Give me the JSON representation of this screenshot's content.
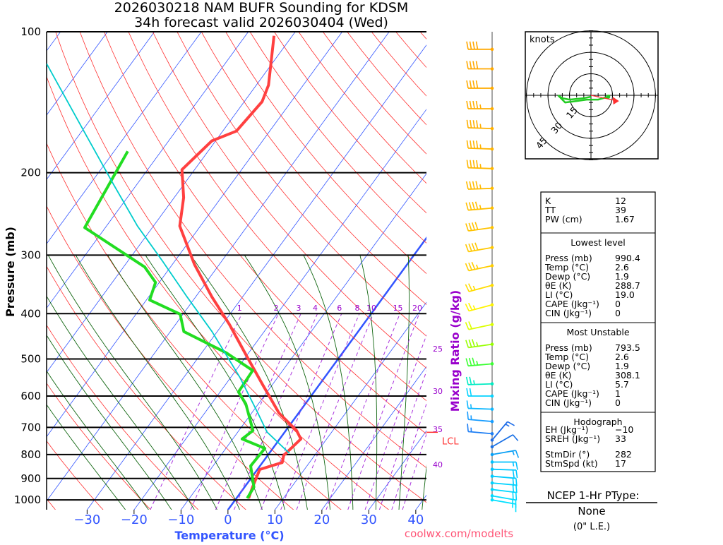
{
  "header": {
    "title_line1": "2026030218 NAM BUFR Sounding for KDSM",
    "title_line2": "34h forecast valid 2026030404 (Wed)"
  },
  "axes": {
    "ylabel": "Pressure (mb)",
    "xlabel": "Temperature (°C)",
    "mixing_ratio_label": "Mixing Ratio (g/kg)",
    "pressure_ticks": [
      100,
      200,
      300,
      400,
      500,
      600,
      700,
      800,
      900,
      1000
    ],
    "temperature_ticks": [
      -30,
      -20,
      -10,
      0,
      10,
      20,
      30,
      40
    ],
    "temperature_tick_labels": [
      "−30",
      "−20",
      "−10",
      "0",
      "10",
      "20",
      "30",
      "40"
    ],
    "mixing_ratio_top_labels": [
      1,
      2,
      3,
      4,
      6,
      8,
      10,
      15,
      20
    ],
    "mixing_ratio_side_labels": [
      25,
      30,
      35,
      40
    ],
    "lcl_label": "LCL",
    "footer": "coolwx.com/modelts"
  },
  "chart_data": {
    "type": "line",
    "title": "2026030218 NAM BUFR Sounding for KDSM — 34h forecast valid 2026030404 (Wed)",
    "xlabel": "Temperature (°C)",
    "ylabel": "Pressure (mb)",
    "xlim_at_bottom": [
      -40,
      45
    ],
    "ylim": [
      1050,
      100
    ],
    "lcl_pressure": 717,
    "series": [
      {
        "name": "temperature",
        "color": "#ff4040",
        "points": [
          [
            992,
            2.6
          ],
          [
            939,
            1.7
          ],
          [
            861,
            0.5
          ],
          [
            832,
            4.2
          ],
          [
            803,
            3.4
          ],
          [
            741,
            4.5
          ],
          [
            711,
            2.3
          ],
          [
            652,
            -4.2
          ],
          [
            567,
            -12.1
          ],
          [
            494,
            -19.8
          ],
          [
            422,
            -28.5
          ],
          [
            368,
            -36.6
          ],
          [
            314,
            -45.3
          ],
          [
            260,
            -54.4
          ],
          [
            226,
            -58.0
          ],
          [
            197,
            -62.7
          ],
          [
            171,
            -60.8
          ],
          [
            163,
            -57.1
          ],
          [
            141,
            -56.2
          ],
          [
            130,
            -57.4
          ],
          [
            102,
            -63.9
          ]
        ]
      },
      {
        "name": "dewpoint",
        "color": "#22dd22",
        "points": [
          [
            992,
            2.3
          ],
          [
            939,
            2.0
          ],
          [
            846,
            -2.0
          ],
          [
            776,
            -1.7
          ],
          [
            741,
            -8.0
          ],
          [
            711,
            -7.0
          ],
          [
            623,
            -12.7
          ],
          [
            588,
            -16.1
          ],
          [
            529,
            -16.4
          ],
          [
            485,
            -24.8
          ],
          [
            437,
            -37.1
          ],
          [
            401,
            -40.6
          ],
          [
            374,
            -49.3
          ],
          [
            343,
            -50.8
          ],
          [
            318,
            -55.5
          ],
          [
            262,
            -74.4
          ],
          [
            180,
            -77.1
          ]
        ]
      },
      {
        "name": "parcel",
        "color": "#00cccc",
        "points": [
          [
            795,
            4.3
          ],
          [
            716,
            -3.8
          ],
          [
            652,
            -8.7
          ],
          [
            548,
            -18.0
          ],
          [
            437,
            -31.1
          ],
          [
            368,
            -41.9
          ],
          [
            309,
            -52.6
          ],
          [
            260,
            -63.4
          ],
          [
            211,
            -75.2
          ],
          [
            165,
            -88.9
          ],
          [
            117,
            -108
          ]
        ]
      }
    ],
    "winds": [
      [
        109,
        270,
        40
      ],
      [
        120,
        270,
        40
      ],
      [
        132,
        270,
        40
      ],
      [
        146,
        270,
        45
      ],
      [
        161,
        272,
        45
      ],
      [
        178,
        272,
        45
      ],
      [
        196,
        272,
        45
      ],
      [
        216,
        268,
        45
      ],
      [
        238,
        265,
        45
      ],
      [
        262,
        262,
        40
      ],
      [
        289,
        260,
        40
      ],
      [
        316,
        258,
        35
      ],
      [
        348,
        255,
        25
      ],
      [
        383,
        255,
        25
      ],
      [
        422,
        258,
        20
      ],
      [
        465,
        262,
        35
      ],
      [
        512,
        265,
        35
      ],
      [
        565,
        268,
        25
      ],
      [
        600,
        270,
        20
      ],
      [
        640,
        272,
        15
      ],
      [
        680,
        275,
        15
      ],
      [
        722,
        275,
        15
      ],
      [
        745,
        40,
        15
      ],
      [
        770,
        60,
        10
      ],
      [
        800,
        80,
        15
      ],
      [
        830,
        90,
        15
      ],
      [
        860,
        92,
        18
      ],
      [
        890,
        95,
        18
      ],
      [
        920,
        95,
        18
      ],
      [
        950,
        97,
        18
      ],
      [
        980,
        100,
        15
      ],
      [
        1000,
        100,
        15
      ]
    ],
    "wind_color_stops": [
      [
        100,
        "#ffa500"
      ],
      [
        330,
        "#ffd000"
      ],
      [
        400,
        "#ffff00"
      ],
      [
        480,
        "#80ff00"
      ],
      [
        540,
        "#00ff60"
      ],
      [
        580,
        "#00e0ff"
      ],
      [
        700,
        "#1e90ff"
      ],
      [
        760,
        "#1e60e0"
      ],
      [
        820,
        "#00c0ff"
      ],
      [
        1000,
        "#00e0ff"
      ]
    ]
  },
  "hodograph": {
    "units_label": "knots",
    "rings": [
      15,
      30,
      45
    ],
    "trace_uv": [
      [
        12,
        -1
      ],
      [
        5,
        -3
      ],
      [
        -3,
        -3
      ],
      [
        -10,
        -4
      ],
      [
        -18,
        -5
      ],
      [
        -23,
        0
      ],
      [
        -20,
        -2
      ],
      [
        -15,
        -3
      ],
      [
        -5,
        -2
      ],
      [
        0,
        -1
      ]
    ],
    "storm_motion_uv": [
      16.6,
      -3.5
    ]
  },
  "stats": {
    "indices": [
      {
        "label": "K",
        "value": "12"
      },
      {
        "label": "TT",
        "value": "39"
      },
      {
        "label": "PW (cm)",
        "value": "1.67"
      }
    ],
    "lowest": {
      "heading": "Lowest level",
      "rows": [
        {
          "label": "Press (mb)",
          "value": "990.4"
        },
        {
          "label": "Temp (°C)",
          "value": "2.6"
        },
        {
          "label": "Dewp (°C)",
          "value": "1.9"
        },
        {
          "label": "θE (K)",
          "value": "288.7"
        },
        {
          "label": "LI (°C)",
          "value": "19.0"
        },
        {
          "label": "CAPE (Jkg⁻¹)",
          "value": "0"
        },
        {
          "label": "CIN (Jkg⁻¹)",
          "value": "0"
        }
      ]
    },
    "unstable": {
      "heading": "Most Unstable",
      "rows": [
        {
          "label": "Press (mb)",
          "value": "793.5"
        },
        {
          "label": "Temp (°C)",
          "value": "2.6"
        },
        {
          "label": "Dewp (°C)",
          "value": "1.9"
        },
        {
          "label": "θE (K)",
          "value": "308.1"
        },
        {
          "label": "LI (°C)",
          "value": "5.7"
        },
        {
          "label": "CAPE (Jkg⁻¹)",
          "value": "1"
        },
        {
          "label": "CIN (Jkg⁻¹)",
          "value": "0"
        }
      ]
    },
    "hodo": {
      "heading": "Hodograph",
      "rows": [
        {
          "label": "EH (Jkg⁻¹)",
          "value": "−10"
        },
        {
          "label": "SREH (Jkg⁻¹)",
          "value": "33"
        },
        {
          "label": "StmDir (°)",
          "value": "282"
        },
        {
          "label": "StmSpd (kt)",
          "value": "17"
        }
      ]
    }
  },
  "ptype": {
    "heading": "NCEP 1-Hr PType:",
    "value": "None",
    "amount": "(0\" L.E.)"
  }
}
